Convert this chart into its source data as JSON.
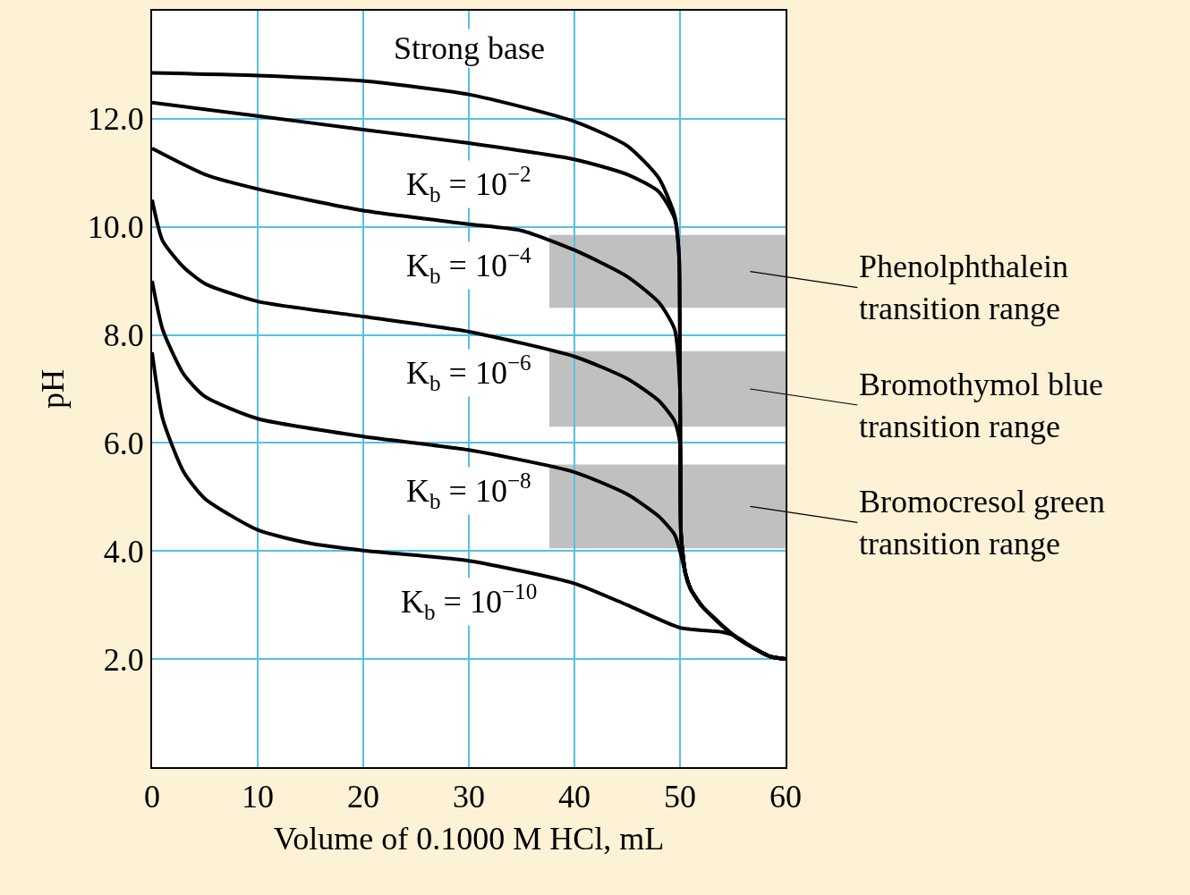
{
  "chart_data": {
    "type": "line",
    "xlabel": "Volume of 0.1000 M HCl, mL",
    "ylabel": "pH",
    "xlim": [
      0,
      60
    ],
    "ylim": [
      0,
      14
    ],
    "xticks": [
      0,
      10,
      20,
      30,
      40,
      50,
      60
    ],
    "yticks": [
      {
        "value": 2,
        "label": "2.0"
      },
      {
        "value": 4,
        "label": "4.0"
      },
      {
        "value": 6,
        "label": "6.0"
      },
      {
        "value": 8,
        "label": "8.0"
      },
      {
        "value": 10,
        "label": "10.0"
      },
      {
        "value": 12,
        "label": "12.0"
      }
    ],
    "grid": true,
    "legend": false,
    "marker": "none",
    "line_style": "solid",
    "series": [
      {
        "name": "Strong base",
        "color": "#000000",
        "x": [
          0,
          10,
          20,
          30,
          40,
          45,
          48,
          49.5,
          49.9,
          50,
          50.1,
          50.5,
          51,
          52,
          53,
          55,
          57,
          58.5,
          60
        ],
        "values": [
          12.85,
          12.8,
          12.7,
          12.45,
          11.95,
          11.5,
          10.9,
          10.2,
          9.5,
          7.0,
          4.3,
          3.6,
          3.3,
          3.0,
          2.8,
          2.45,
          2.2,
          2.05,
          2.0
        ]
      },
      {
        "name": "K$_{b}$ = 10$^{−2}$",
        "color": "#000000",
        "x": [
          0,
          10,
          20,
          30,
          40,
          45,
          48,
          49.5,
          49.9,
          50,
          50.1,
          50.5,
          51,
          52,
          53,
          55,
          57,
          58.5,
          60
        ],
        "values": [
          12.3,
          12.05,
          11.8,
          11.55,
          11.25,
          10.97,
          10.65,
          10.15,
          9.5,
          7.0,
          4.3,
          3.6,
          3.3,
          3.0,
          2.8,
          2.45,
          2.2,
          2.05,
          2.0
        ]
      },
      {
        "name": "K$_{b}$ = 10$^{−4}$",
        "color": "#000000",
        "x": [
          0,
          5,
          10,
          20,
          30,
          35,
          40,
          45,
          48,
          49.5,
          50,
          50.1,
          50.5,
          51,
          52,
          53,
          55,
          57,
          58.5,
          60
        ],
        "values": [
          11.45,
          10.97,
          10.7,
          10.3,
          10.05,
          9.93,
          9.57,
          9.08,
          8.6,
          8.1,
          7.0,
          4.3,
          3.6,
          3.3,
          3.0,
          2.8,
          2.45,
          2.2,
          2.05,
          2.0
        ]
      },
      {
        "name": "K$_{b}$ = 10$^{−6}$",
        "color": "#000000",
        "x": [
          0,
          1,
          3,
          5,
          10,
          20,
          30,
          40,
          45,
          48,
          49.5,
          50,
          50.1,
          50.5,
          51,
          52,
          53,
          55,
          57,
          58.5,
          60
        ],
        "values": [
          10.5,
          9.74,
          9.25,
          8.95,
          8.62,
          8.34,
          8.06,
          7.6,
          7.19,
          6.78,
          6.4,
          6.0,
          4.3,
          3.6,
          3.3,
          3.0,
          2.8,
          2.45,
          2.2,
          2.05,
          2.0
        ]
      },
      {
        "name": "K$_{b}$ = 10$^{−8}$",
        "color": "#000000",
        "x": [
          0,
          1,
          3,
          5,
          10,
          20,
          30,
          40,
          45,
          48,
          49.5,
          50,
          50.5,
          51,
          52,
          53,
          55,
          57,
          58.5,
          60
        ],
        "values": [
          9.0,
          8.1,
          7.27,
          6.86,
          6.45,
          6.12,
          5.87,
          5.46,
          5.05,
          4.64,
          4.3,
          4.0,
          3.6,
          3.3,
          3.0,
          2.8,
          2.45,
          2.2,
          2.05,
          2.0
        ]
      },
      {
        "name": "K$_{b}$ = 10$^{−10}$",
        "color": "#000000",
        "x": [
          0,
          1,
          3,
          5,
          10,
          15,
          20,
          30,
          40,
          45,
          50,
          54,
          55,
          57,
          58.5,
          60
        ],
        "values": [
          7.68,
          6.45,
          5.46,
          4.97,
          4.39,
          4.14,
          4.01,
          3.82,
          3.4,
          3.0,
          2.58,
          2.5,
          2.45,
          2.2,
          2.05,
          2.0
        ]
      }
    ],
    "bands": [
      {
        "axis": "y",
        "from": 8.5,
        "to": 9.85,
        "color": "#c0c0c0",
        "label": "Phenolphthalein\ntransition range"
      },
      {
        "axis": "y",
        "from": 6.3,
        "to": 7.7,
        "color": "#c0c0c0",
        "label": "Bromothymol blue\ntransition range"
      },
      {
        "axis": "y",
        "from": 4.05,
        "to": 5.6,
        "color": "#c0c0c0",
        "label": "Bromocresol green\ntransition range"
      }
    ]
  }
}
